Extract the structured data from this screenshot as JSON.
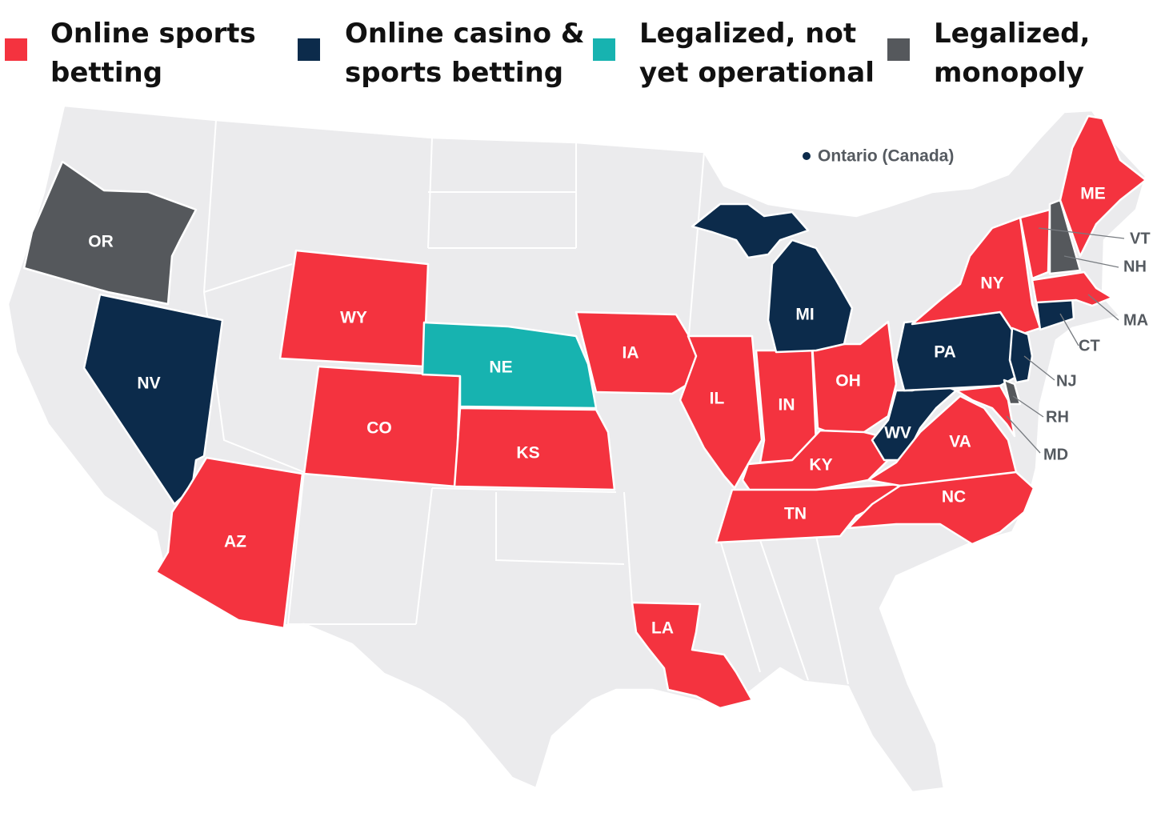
{
  "colors": {
    "online_sports_betting": "#f4333f",
    "online_casino_sports": "#0c2b4b",
    "legalized_not_operational": "#17b3b0",
    "legalized_monopoly": "#55585c",
    "not_legal": "#ebebed"
  },
  "legend": [
    {
      "key": "online_sports_betting",
      "line1": "Online sports",
      "line2": "betting",
      "color": "#f4333f"
    },
    {
      "key": "online_casino_sports",
      "line1": "Online casino &",
      "line2": "sports betting",
      "color": "#0c2b4b"
    },
    {
      "key": "legalized_not_operational",
      "line1": "Legalized, not",
      "line2": "yet operational",
      "color": "#17b3b0"
    },
    {
      "key": "legalized_monopoly",
      "line1": "Legalized,",
      "line2": "monopoly",
      "color": "#55585c"
    }
  ],
  "ontario": {
    "label": "Ontario (Canada)",
    "status": "online_casino_sports"
  },
  "states": {
    "OR": "OR",
    "NV": "NV",
    "WY": "WY",
    "CO": "CO",
    "AZ": "AZ",
    "NE": "NE",
    "KS": "KS",
    "IA": "IA",
    "IL": "IL",
    "IN": "IN",
    "OH": "OH",
    "MI": "MI",
    "KY": "KY",
    "TN": "TN",
    "LA": "LA",
    "WV": "WV",
    "VA": "VA",
    "NC": "NC",
    "PA": "PA",
    "NY": "NY",
    "ME": "ME"
  },
  "callouts": {
    "VT": "VT",
    "NH": "NH",
    "MA": "MA",
    "CT": "CT",
    "NJ": "NJ",
    "RH": "RH",
    "MD": "MD"
  },
  "status": {
    "OR": "legalized_monopoly",
    "NV": "online_casino_sports",
    "WY": "online_sports_betting",
    "CO": "online_sports_betting",
    "AZ": "online_sports_betting",
    "NE": "legalized_not_operational",
    "KS": "online_sports_betting",
    "IA": "online_sports_betting",
    "IL": "online_sports_betting",
    "IN": "online_sports_betting",
    "OH": "online_sports_betting",
    "MI": "online_casino_sports",
    "KY": "online_sports_betting",
    "TN": "online_sports_betting",
    "LA": "online_sports_betting",
    "WV": "online_casino_sports",
    "VA": "online_sports_betting",
    "NC": "online_sports_betting",
    "PA": "online_casino_sports",
    "NY": "online_sports_betting",
    "ME": "online_sports_betting",
    "VT": "online_sports_betting",
    "NH": "legalized_monopoly",
    "MA": "online_sports_betting",
    "CT": "online_casino_sports",
    "NJ": "online_casino_sports",
    "RH": "legalized_monopoly",
    "MD": "online_sports_betting"
  }
}
